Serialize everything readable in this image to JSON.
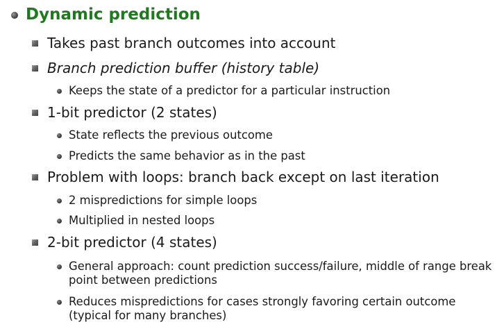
{
  "slide": {
    "title": "Dynamic prediction",
    "items": [
      {
        "level": 1,
        "text": "Takes past branch outcomes into account",
        "italic": false
      },
      {
        "level": 1,
        "text": "Branch prediction buffer (history table)",
        "italic": true
      },
      {
        "level": 2,
        "text": "Keeps the state of a predictor for a particular instruction"
      },
      {
        "level": 1,
        "text": "1-bit predictor (2 states)",
        "italic": false
      },
      {
        "level": 2,
        "text": "State reflects the previous outcome"
      },
      {
        "level": 2,
        "text": "Predicts the same behavior as in the past"
      },
      {
        "level": 1,
        "text": "Problem with loops: branch back except on last iteration",
        "italic": false
      },
      {
        "level": 2,
        "text": "2 mispredictions for simple loops"
      },
      {
        "level": 2,
        "text": "Multiplied in nested loops"
      },
      {
        "level": 1,
        "text": "2-bit predictor (4 states)",
        "italic": false
      },
      {
        "level": 2,
        "text": "General approach: count prediction success/failure, middle of range break point between predictions"
      },
      {
        "level": 2,
        "text": "Reduces mispredictions for cases strongly favoring certain  outcome (typical for many branches)"
      }
    ]
  }
}
